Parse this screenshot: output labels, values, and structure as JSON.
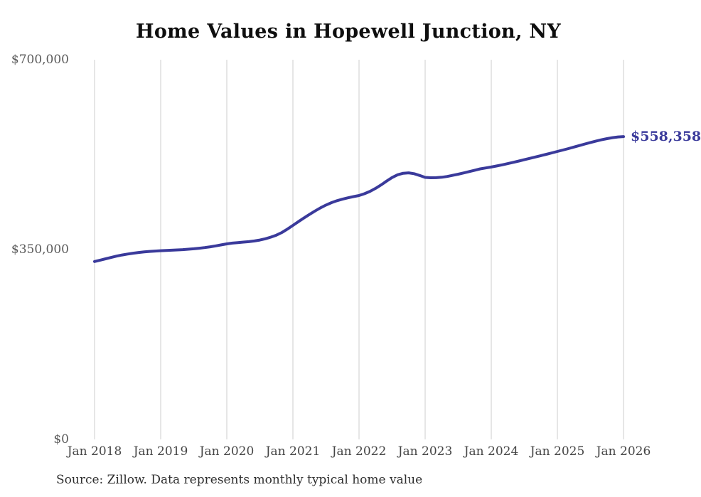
{
  "page": {
    "background": "#ffffff"
  },
  "colors": {
    "line": "#3a3a9b",
    "grid": "#cccccc",
    "title": "#0e0e0e",
    "y_tick_text": "#5a5a5a",
    "x_tick_text": "#454545",
    "end_label_text": "#3a3a9b",
    "source_text": "#2f2f2f"
  },
  "chart_data": {
    "type": "line",
    "title": "Home Values in Hopewell Junction, NY",
    "source_note": "Source: Zillow. Data represents monthly typical home value",
    "end_label": "$558,358",
    "xlabel": "",
    "ylabel": "",
    "x_range": {
      "start": "Jan 2018",
      "end": "Jan 2026",
      "frequency": "monthly"
    },
    "x_tick_labels": [
      "Jan 2018",
      "Jan 2019",
      "Jan 2020",
      "Jan 2021",
      "Jan 2022",
      "Jan 2023",
      "Jan 2024",
      "Jan 2025",
      "Jan 2026"
    ],
    "y_ticks": [
      {
        "label": "$0",
        "value": 0
      },
      {
        "label": "$350,000",
        "value": 350000
      },
      {
        "label": "$700,000",
        "value": 700000
      }
    ],
    "ylim": [
      0,
      700000
    ],
    "grid": "vertical-only",
    "legend": "none",
    "series": [
      {
        "name": "Monthly typical home value",
        "color": "#3a3a9b",
        "last_value": 558358,
        "values": [
          328000,
          330500,
          333000,
          335500,
          338000,
          340000,
          341800,
          343300,
          344600,
          345700,
          346600,
          347300,
          347900,
          348400,
          348800,
          349300,
          349900,
          350600,
          351500,
          352500,
          353700,
          355100,
          356800,
          358600,
          360500,
          361900,
          362900,
          363700,
          364600,
          365900,
          367600,
          369900,
          372900,
          376600,
          381500,
          387800,
          394600,
          401500,
          408200,
          414700,
          421000,
          426900,
          432100,
          436500,
          440000,
          442900,
          445400,
          447600,
          449600,
          453000,
          457400,
          462800,
          469200,
          476200,
          482800,
          487900,
          490700,
          491500,
          489900,
          486600,
          483000,
          482400,
          482500,
          483300,
          484800,
          486800,
          489000,
          491300,
          493800,
          496300,
          498800,
          500500,
          502200,
          504200,
          506300,
          508500,
          510800,
          513200,
          515700,
          518200,
          520700,
          523200,
          525700,
          528300,
          530900,
          533500,
          536200,
          539000,
          541800,
          544600,
          547400,
          550000,
          552400,
          554500,
          556300,
          557600,
          558358
        ]
      }
    ]
  }
}
